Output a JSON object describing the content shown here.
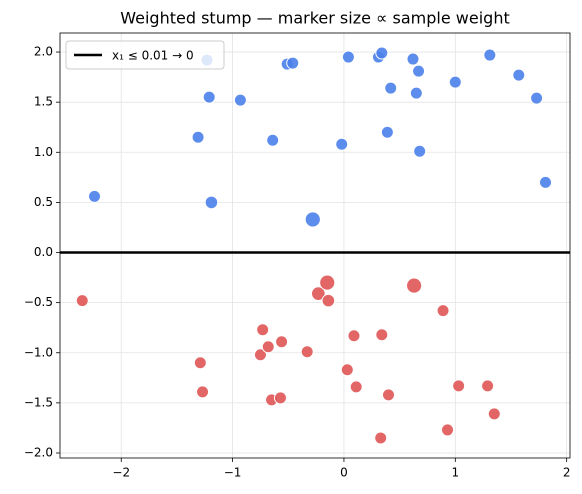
{
  "chart_data": {
    "type": "scatter",
    "title": "Weighted stump — marker size ∝ sample weight",
    "xlim": [
      -2.55,
      2.03
    ],
    "ylim": [
      -2.05,
      2.19
    ],
    "xticks": [
      {
        "value": -2,
        "label": "−2"
      },
      {
        "value": -1,
        "label": "−1"
      },
      0,
      1,
      2
    ],
    "yticks": [
      {
        "value": -2,
        "label": "−2.0"
      },
      {
        "value": -1.5,
        "label": "−1.5"
      },
      {
        "value": -1,
        "label": "−1.0"
      },
      {
        "value": -0.5,
        "label": "−0.5"
      },
      {
        "value": 0,
        "label": "0.0"
      },
      0.5,
      {
        "value": 1,
        "label": "1.0"
      },
      1.5,
      {
        "value": 2,
        "label": "2.0"
      }
    ],
    "grid": true,
    "legend": "upper left",
    "reference_line": {
      "value": 0,
      "label": "x₁ ≤ 0.01 → 0",
      "color": "#000000"
    },
    "series": [
      {
        "color": "#4a7fea",
        "x": [
          -2.24,
          -1.23,
          -1.21,
          -1.31,
          -1.19,
          -0.93,
          -0.64,
          -0.51,
          -0.46,
          -0.28,
          -0.02,
          0.04,
          0.31,
          0.34,
          0.39,
          0.42,
          0.62,
          0.67,
          0.65,
          0.68,
          1.0,
          1.31,
          1.57,
          1.73,
          1.81
        ],
        "values": [
          0.56,
          1.92,
          1.55,
          1.15,
          0.5,
          1.52,
          1.12,
          1.88,
          1.89,
          0.33,
          1.08,
          1.95,
          1.95,
          1.99,
          1.2,
          1.64,
          1.93,
          1.81,
          1.59,
          1.01,
          1.7,
          1.97,
          1.77,
          1.54,
          0.7
        ],
        "sizes": [
          1,
          1,
          1,
          1,
          1.1,
          1,
          1,
          1,
          1,
          1.6,
          1,
          1,
          1,
          1,
          1,
          1,
          1,
          1,
          1,
          1,
          1,
          1,
          1,
          1,
          1
        ]
      },
      {
        "color": "#e05555",
        "x": [
          -2.35,
          -1.29,
          -1.27,
          -0.73,
          -0.75,
          -0.68,
          -0.65,
          -0.56,
          -0.57,
          -0.33,
          -0.23,
          -0.15,
          -0.14,
          0.03,
          0.09,
          0.11,
          0.34,
          0.33,
          0.4,
          0.63,
          0.89,
          0.93,
          1.03,
          1.29,
          1.35
        ],
        "values": [
          -0.48,
          -1.1,
          -1.39,
          -0.77,
          -1.02,
          -0.94,
          -1.47,
          -0.89,
          -1.45,
          -0.99,
          -0.41,
          -0.3,
          -0.48,
          -1.17,
          -0.83,
          -1.34,
          -0.82,
          -1.85,
          -1.42,
          -0.33,
          -0.58,
          -1.77,
          -1.33,
          -1.33,
          -1.61
        ],
        "sizes": [
          1,
          1,
          1,
          1,
          1,
          1,
          1,
          1,
          1,
          1,
          1.3,
          1.6,
          1.1,
          1,
          1,
          1,
          1,
          1,
          1,
          1.6,
          1,
          1,
          1,
          1,
          1
        ]
      }
    ]
  }
}
